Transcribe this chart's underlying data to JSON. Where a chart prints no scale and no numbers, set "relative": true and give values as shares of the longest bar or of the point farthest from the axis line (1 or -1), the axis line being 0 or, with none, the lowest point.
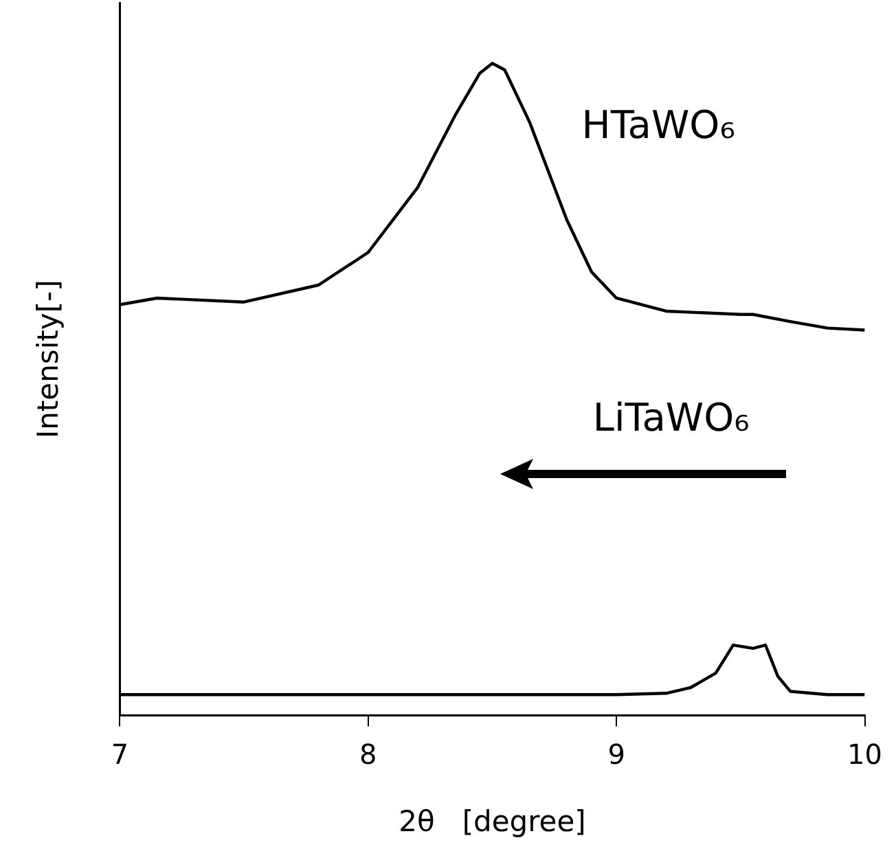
{
  "chart_data": {
    "type": "line",
    "relative": true,
    "xlabel": "2θ   [degree]",
    "ylabel": "Intensity[-]",
    "xlim": [
      7,
      10
    ],
    "xticks": [
      7,
      8,
      9,
      10
    ],
    "grid": false,
    "legend": false,
    "marker": "none",
    "line_style": "solid",
    "tick_labels": "x",
    "annotations": [
      "LiTaWO₆"
    ],
    "series": [
      {
        "name": "HTaWO₆",
        "color": "#000000",
        "x": [
          7,
          7.15,
          7.5,
          7.8,
          8,
          8.2,
          8.35,
          8.45,
          8.5,
          8.55,
          8.65,
          8.8,
          8.9,
          9,
          9.2,
          9.5,
          9.55,
          9.7,
          9.85,
          10
        ],
        "values": [
          0.63,
          0.64,
          0.634,
          0.66,
          0.71,
          0.81,
          0.92,
          0.985,
          1,
          0.99,
          0.91,
          0.76,
          0.68,
          0.64,
          0.62,
          0.615,
          0.615,
          0.604,
          0.594,
          0.591
        ]
      },
      {
        "color": "#000000",
        "x": [
          7,
          7.5,
          8,
          8.5,
          9,
          9.2,
          9.3,
          9.4,
          9.47,
          9.55,
          9.6,
          9.65,
          9.7,
          9.85,
          10
        ],
        "values": [
          0.032,
          0.032,
          0.032,
          0.032,
          0.032,
          0.034,
          0.043,
          0.065,
          0.108,
          0.103,
          0.108,
          0.06,
          0.037,
          0.032,
          0.032
        ]
      }
    ]
  }
}
